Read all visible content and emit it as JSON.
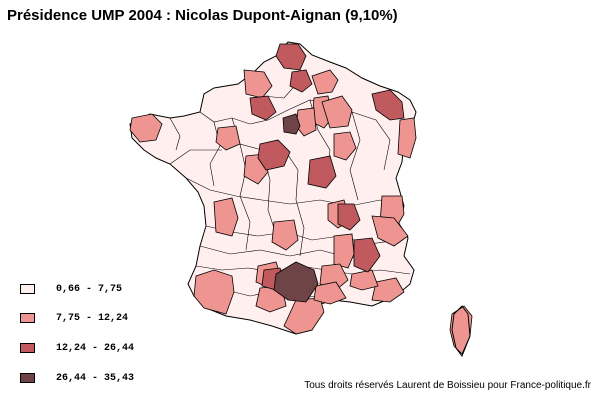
{
  "title": "Présidence UMP 2004 : Nicolas Dupont-Aignan (9,10%)",
  "legend": [
    {
      "label": "0,66 - 7,75",
      "color": "#fff0ef"
    },
    {
      "label": "7,75 - 12,24",
      "color": "#ee9592"
    },
    {
      "label": "12,24 - 26,44",
      "color": "#c05a5e"
    },
    {
      "label": "26,44 - 35,43",
      "color": "#6e4447"
    }
  ],
  "credit": "Tous droits réservés Laurent de Boissieu pour France-politique.fr"
}
